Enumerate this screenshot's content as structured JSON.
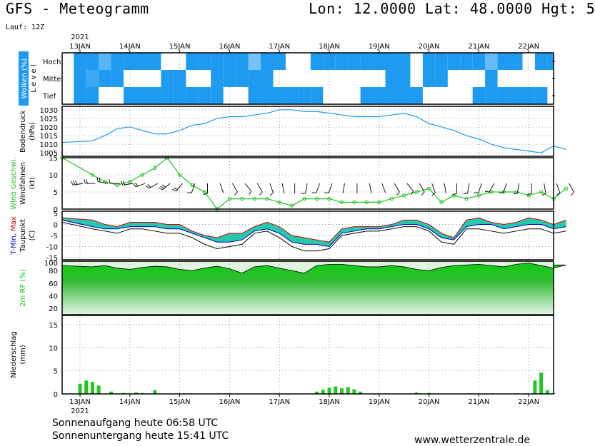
{
  "header": {
    "title": "GFS - Meteogramm",
    "location": "Lon: 12.0000 Lat: 48.0000 Hgt: 5",
    "run": "Lauf: 12Z"
  },
  "timeaxis": {
    "year": "2021",
    "days": [
      "13JAN",
      "14JAN",
      "15JAN",
      "16JAN",
      "17JAN",
      "18JAN",
      "19JAN",
      "20JAN",
      "21JAN",
      "22JAN"
    ]
  },
  "footer": {
    "sunrise": "Sonnenaufgang heute 06:58 UTC",
    "sunset": "Sonnenuntergang heute 15:41 UTC",
    "source": "www.wetterzentrale.de"
  },
  "colors": {
    "cloud": "#1e9bf0",
    "pressure": "#1e9bf0",
    "wind": "#22c522",
    "tmax": "#d00000",
    "tmin": "#0000cc",
    "tband": "#00c0a0",
    "rh": "#22c522",
    "precip": "#22c522"
  },
  "chart_data": [
    {
      "type": "heatmap",
      "panel": "cloud",
      "ylabel_parts": [
        "Wolken",
        "(%)",
        "L e v e l"
      ],
      "levels": [
        "Hoch",
        "Mittel",
        "Tief"
      ],
      "x": [
        0,
        0.25,
        0.5,
        0.75,
        1,
        1.25,
        1.5,
        1.75,
        2,
        2.25,
        2.5,
        2.75,
        3,
        3.25,
        3.5,
        3.75,
        4,
        4.25,
        4.5,
        4.75,
        5,
        5.25,
        5.5,
        5.75,
        6,
        6.25,
        6.5,
        6.75,
        7,
        7.25,
        7.5,
        7.75,
        8,
        8.25,
        8.5,
        8.75,
        9,
        9.25,
        9.5,
        9.75
      ],
      "series": [
        {
          "level": "Hoch",
          "values": [
            100,
            100,
            60,
            100,
            100,
            100,
            100,
            0,
            0,
            100,
            100,
            100,
            100,
            100,
            40,
            100,
            100,
            0,
            0,
            100,
            100,
            100,
            100,
            100,
            100,
            100,
            100,
            0,
            100,
            100,
            100,
            100,
            100,
            50,
            100,
            100,
            0,
            100,
            100,
            100
          ]
        },
        {
          "level": "Mittel",
          "values": [
            100,
            80,
            100,
            100,
            0,
            0,
            0,
            100,
            100,
            0,
            0,
            100,
            100,
            100,
            100,
            100,
            0,
            0,
            0,
            0,
            0,
            0,
            0,
            0,
            0,
            100,
            100,
            0,
            100,
            100,
            0,
            0,
            0,
            100,
            0,
            0,
            0,
            0,
            0,
            100
          ]
        },
        {
          "level": "Tief",
          "values": [
            100,
            100,
            0,
            0,
            100,
            100,
            100,
            100,
            100,
            100,
            100,
            100,
            0,
            0,
            100,
            100,
            100,
            100,
            100,
            100,
            0,
            0,
            0,
            100,
            100,
            100,
            100,
            100,
            0,
            0,
            0,
            0,
            100,
            100,
            100,
            100,
            100,
            100,
            0,
            100
          ]
        }
      ]
    },
    {
      "type": "line",
      "panel": "pressure",
      "ylabel_parts": [
        "Bodendruck",
        "(hPa)"
      ],
      "ylim": [
        1003,
        1032
      ],
      "yticks": [
        1005,
        1010,
        1015,
        1020,
        1025,
        1030
      ],
      "x": [
        0,
        0.25,
        0.5,
        0.75,
        1,
        1.25,
        1.5,
        1.75,
        2,
        2.25,
        2.5,
        2.75,
        3,
        3.25,
        3.5,
        3.75,
        4,
        4.25,
        4.5,
        4.75,
        5,
        5.25,
        5.5,
        5.75,
        6,
        6.25,
        6.5,
        6.75,
        7,
        7.25,
        7.5,
        7.75,
        8,
        8.25,
        8.5,
        8.75,
        9,
        9.25,
        9.5,
        9.75
      ],
      "values": [
        1011,
        1012,
        1015,
        1019,
        1020,
        1018,
        1016,
        1016,
        1018,
        1021,
        1022,
        1025,
        1026,
        1026,
        1027,
        1028,
        1030,
        1030,
        1029,
        1029,
        1028,
        1027,
        1026,
        1026,
        1026,
        1027,
        1028,
        1026,
        1022,
        1020,
        1018,
        1015,
        1013,
        1010,
        1008,
        1007,
        1006,
        1005,
        1009,
        1007
      ]
    },
    {
      "type": "line",
      "panel": "wind",
      "ylabel_parts": [
        "Wind Geschwi.",
        "Windfahnen",
        "(kt)"
      ],
      "ylim": [
        0,
        15
      ],
      "yticks": [
        0,
        5,
        10,
        15
      ],
      "x": [
        0,
        0.25,
        0.5,
        0.75,
        1,
        1.25,
        1.5,
        1.75,
        2,
        2.25,
        2.5,
        2.75,
        3,
        3.25,
        3.5,
        3.75,
        4,
        4.25,
        4.5,
        4.75,
        5,
        5.25,
        5.5,
        5.75,
        6,
        6.25,
        6.5,
        6.75,
        7,
        7.25,
        7.5,
        7.75,
        8,
        8.25,
        8.5,
        8.75,
        9,
        9.25,
        9.5,
        9.75
      ],
      "values": [
        15,
        10,
        8,
        7,
        8,
        10,
        12,
        15,
        10,
        7,
        5,
        0,
        3,
        3,
        3,
        3,
        2,
        1,
        3,
        3,
        3,
        2,
        2,
        2,
        2,
        3,
        4,
        5,
        6,
        2,
        4,
        3,
        4,
        5,
        5,
        5,
        4,
        5,
        3,
        6
      ],
      "barb_dirs": [
        260,
        270,
        280,
        270,
        260,
        250,
        240,
        230,
        220,
        200,
        180,
        160,
        150,
        140,
        150,
        160,
        170,
        180,
        190,
        200,
        200,
        190,
        180,
        170,
        160,
        150,
        140,
        150,
        160,
        170,
        180,
        190,
        200,
        210,
        200,
        190,
        180,
        170,
        160,
        150
      ]
    },
    {
      "type": "line",
      "panel": "temperature",
      "ylabel_parts": [
        "T-Min,",
        "Max",
        "Taupunkt",
        "(C)"
      ],
      "ylim": [
        -16,
        6
      ],
      "yticks": [
        -15,
        -10,
        -5,
        0,
        5
      ],
      "x": [
        0,
        0.25,
        0.5,
        0.75,
        1,
        1.25,
        1.5,
        1.75,
        2,
        2.25,
        2.5,
        2.75,
        3,
        3.25,
        3.5,
        3.75,
        4,
        4.25,
        4.5,
        4.75,
        5,
        5.25,
        5.5,
        5.75,
        6,
        6.25,
        6.5,
        6.75,
        7,
        7.25,
        7.5,
        7.75,
        8,
        8.25,
        8.5,
        8.75,
        9,
        9.25,
        9.5,
        9.75
      ],
      "series": [
        {
          "name": "Max",
          "values": [
            3,
            2,
            0,
            -1,
            1,
            1,
            1,
            0,
            0,
            -3,
            -5,
            -6,
            -4,
            -4,
            -1,
            1,
            -1,
            -5,
            -6,
            -7,
            -8,
            -2,
            -1,
            -1,
            -1,
            0,
            2,
            2,
            0,
            -4,
            -6,
            2,
            3,
            1,
            0,
            1,
            3,
            2,
            0,
            2
          ]
        },
        {
          "name": "Min",
          "values": [
            2,
            -1,
            -2,
            -2,
            -1,
            -1,
            -1,
            -2,
            -2,
            -4,
            -6,
            -8,
            -8,
            -7,
            -3,
            -2,
            -4,
            -8,
            -9,
            -9,
            -10,
            -4,
            -3,
            -2,
            -2,
            -1,
            0,
            0,
            -2,
            -6,
            -7,
            -1,
            0,
            0,
            -2,
            -1,
            0,
            0,
            -2,
            -1
          ]
        },
        {
          "name": "Taupunkt",
          "values": [
            1,
            -2,
            -3,
            -4,
            -2,
            -2,
            -3,
            -4,
            -4,
            -6,
            -9,
            -11,
            -10,
            -9,
            -4,
            -3,
            -6,
            -10,
            -12,
            -12,
            -11,
            -5,
            -4,
            -3,
            -3,
            -2,
            -1,
            -1,
            -3,
            -8,
            -9,
            -2,
            -2,
            -3,
            -4,
            -3,
            -2,
            -2,
            -4,
            -3
          ]
        }
      ]
    },
    {
      "type": "area",
      "panel": "humidity",
      "ylabel_parts": [
        "2m RF (%)"
      ],
      "ylim": [
        10,
        95
      ],
      "yticks": [
        20,
        40,
        60,
        80
      ],
      "ytick_top": "100",
      "x": [
        0,
        0.25,
        0.5,
        0.75,
        1,
        1.25,
        1.5,
        1.75,
        2,
        2.25,
        2.5,
        2.75,
        3,
        3.25,
        3.5,
        3.75,
        4,
        4.25,
        4.5,
        4.75,
        5,
        5.25,
        5.5,
        5.75,
        6,
        6.25,
        6.5,
        6.75,
        7,
        7.25,
        7.5,
        7.75,
        8,
        8.25,
        8.5,
        8.75,
        9,
        9.25,
        9.5,
        9.75
      ],
      "values": [
        88,
        86,
        88,
        84,
        82,
        85,
        87,
        86,
        82,
        80,
        84,
        87,
        83,
        76,
        86,
        88,
        84,
        80,
        76,
        88,
        90,
        90,
        88,
        86,
        86,
        88,
        86,
        82,
        80,
        85,
        88,
        89,
        90,
        88,
        86,
        90,
        92,
        88,
        84,
        89
      ]
    },
    {
      "type": "bar",
      "panel": "precipitation",
      "ylabel_parts": [
        "Niederschlag",
        "(mm)"
      ],
      "ylim": [
        0,
        17
      ],
      "yticks": [
        0,
        5,
        10,
        15
      ],
      "x": [
        0,
        0.125,
        0.25,
        0.375,
        0.625,
        0.875,
        1.125,
        1.25,
        1.5,
        4.75,
        4.875,
        5.0,
        5.125,
        5.25,
        5.375,
        5.5,
        5.625,
        6.75,
        7.0,
        9.125,
        9.25,
        9.375,
        9.5
      ],
      "values": [
        2.2,
        2.9,
        2.6,
        1.8,
        0.5,
        0.2,
        0.3,
        0.2,
        0.8,
        0.5,
        0.9,
        1.3,
        1.6,
        1.2,
        1.5,
        1.0,
        0.5,
        0.3,
        0.2,
        2.9,
        4.6,
        0.8,
        0.2
      ]
    }
  ]
}
